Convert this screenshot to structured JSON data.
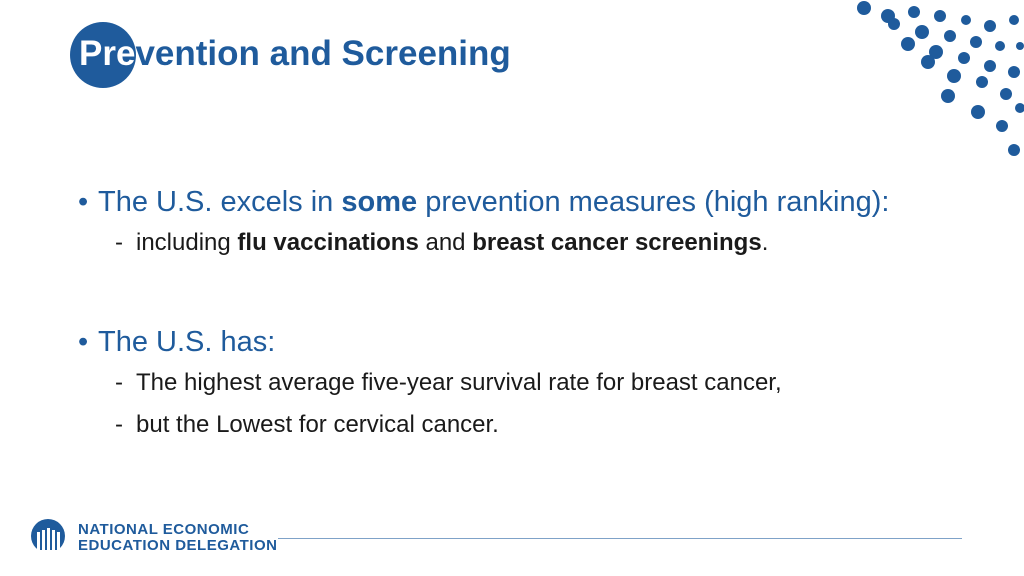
{
  "slide": {
    "title_highlight": "Pre",
    "title_rest": "vention and Screening"
  },
  "bullets": [
    {
      "bullet_glyph": "•",
      "parts": [
        "The U.S. excels in ",
        "some",
        " prevention measures (high ranking):"
      ],
      "subs": [
        {
          "dash": "-",
          "parts": [
            "including ",
            "flu vaccinations",
            " and ",
            "breast cancer screenings",
            "."
          ]
        }
      ]
    },
    {
      "bullet_glyph": "•",
      "text": "The U.S. has:",
      "subs": [
        {
          "dash": "-",
          "text": "The highest average five-year survival rate for breast cancer,"
        },
        {
          "dash": "-",
          "text": "but the Lowest for cervical cancer."
        }
      ]
    }
  ],
  "footer": {
    "org_line1": "NATIONAL ECONOMIC",
    "org_line2": "EDUCATION DELEGATION",
    "logo_icon": "column-globe-logo-icon"
  },
  "decor": {
    "dot_pattern_icon": "dot-pattern-icon",
    "accent_color": "#1f5b9c"
  }
}
